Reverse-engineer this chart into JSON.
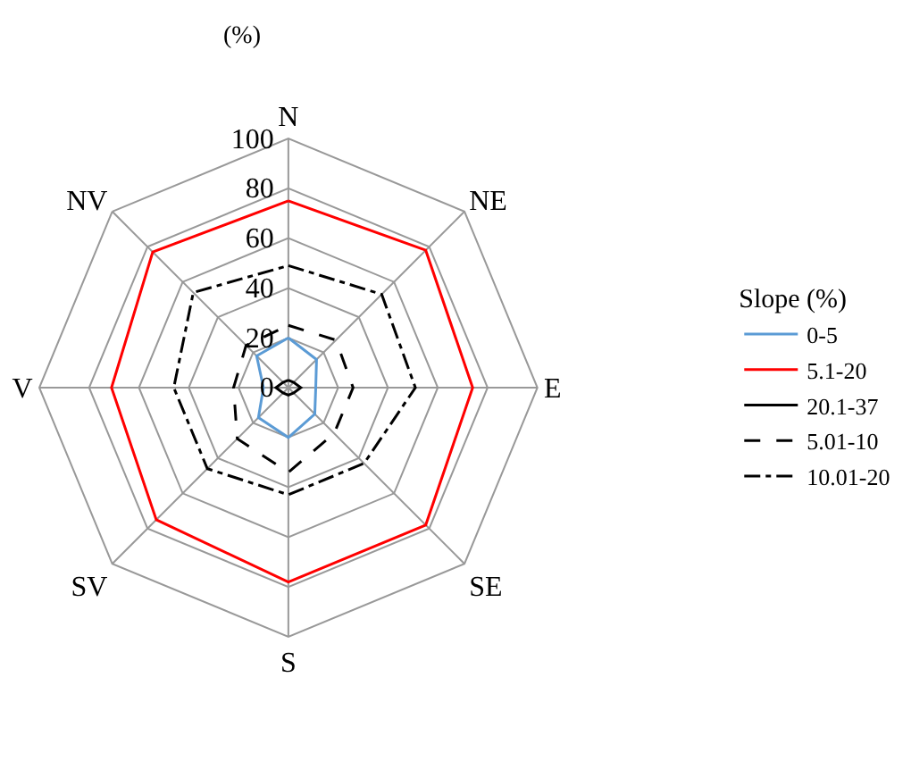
{
  "chart_data": {
    "type": "radar",
    "ylabel": "(%)",
    "legend_title": "Slope (%)",
    "legend": "right",
    "grid": true,
    "marker": "none",
    "categories": [
      "N",
      "NE",
      "E",
      "SE",
      "S",
      "SV",
      "V",
      "NV"
    ],
    "ylim": [
      0,
      100
    ],
    "yticks": [
      0,
      20,
      40,
      60,
      80,
      100
    ],
    "series": [
      {
        "name": "0-5",
        "color": "#5b9bd5",
        "line_style": "solid",
        "values": [
          20,
          16,
          11,
          15,
          20,
          17,
          10,
          18
        ]
      },
      {
        "name": "5.1-20",
        "color": "#ff0000",
        "line_style": "solid",
        "values": [
          75,
          78,
          74,
          78,
          78,
          75,
          71,
          77
        ]
      },
      {
        "name": "20.1-37",
        "color": "#000000",
        "line_style": "solid",
        "values": [
          3,
          3,
          5,
          3,
          3,
          3,
          5,
          3
        ]
      },
      {
        "name": "5.01-10",
        "color": "#000000",
        "line_style": "dashed",
        "values": [
          25,
          27,
          26,
          26,
          34,
          29,
          22,
          24
        ]
      },
      {
        "name": "10.01-20",
        "color": "#000000",
        "line_style": "dashdot",
        "values": [
          49,
          53,
          51,
          43,
          43,
          46,
          46,
          54
        ]
      }
    ]
  }
}
